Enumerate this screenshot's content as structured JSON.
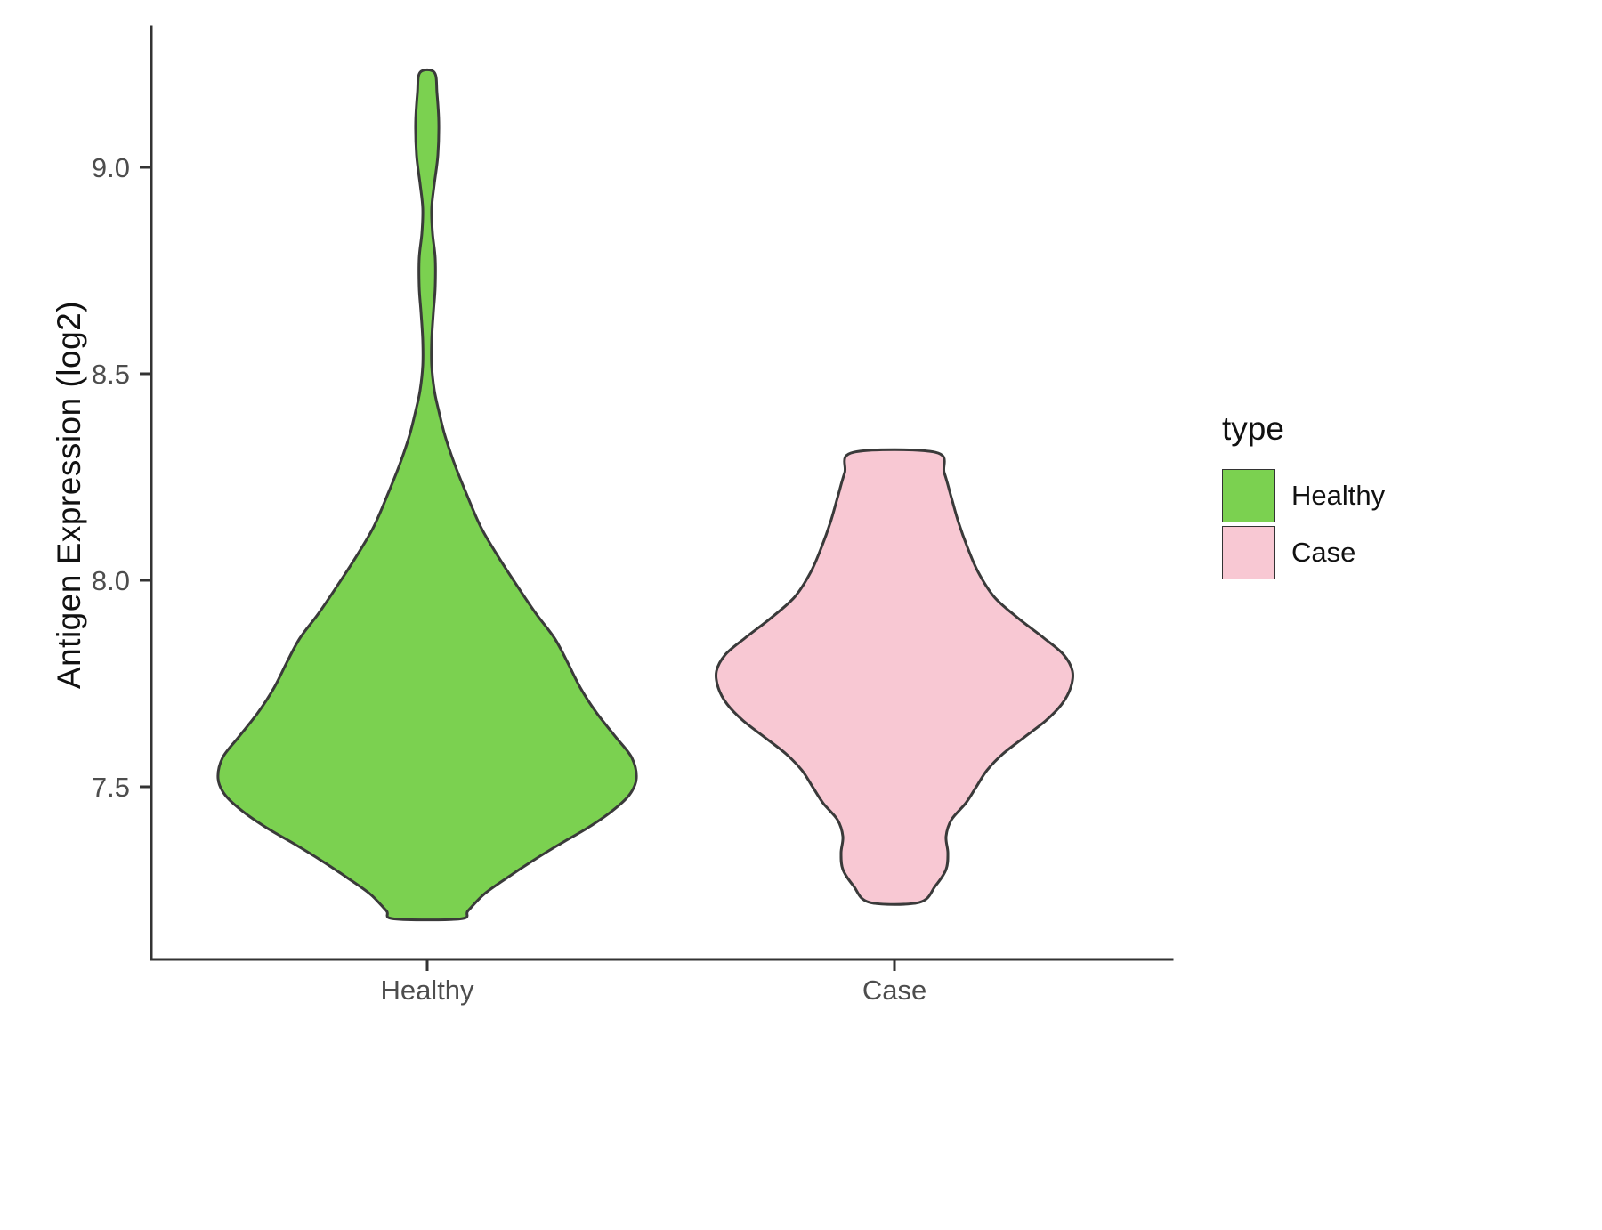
{
  "chart_data": {
    "type": "violin",
    "title": "",
    "xlabel": "",
    "ylabel": "Antigen Expression (log2)",
    "ylim": [
      7.08,
      9.34
    ],
    "yticks": [
      7.5,
      8.0,
      8.5,
      9.0
    ],
    "categories": [
      "Healthy",
      "Case"
    ],
    "grid": false,
    "legend_position": "right",
    "legend": {
      "title": "type",
      "entries": [
        {
          "label": "Healthy",
          "color": "#7bd150"
        },
        {
          "label": "Case",
          "color": "#f8c8d3"
        }
      ]
    },
    "stroke_color": "#3a3a3a",
    "axis_color": "#333333",
    "series": [
      {
        "name": "Healthy",
        "color": "#7bd150",
        "value_range": [
          7.18,
          9.23
        ],
        "peak_density_at": 7.54,
        "profile": [
          [
            9.23,
            8
          ],
          [
            9.18,
            11
          ],
          [
            9.11,
            13
          ],
          [
            9.03,
            12
          ],
          [
            8.96,
            8
          ],
          [
            8.9,
            5
          ],
          [
            8.84,
            6
          ],
          [
            8.78,
            9
          ],
          [
            8.71,
            9
          ],
          [
            8.65,
            7
          ],
          [
            8.58,
            5
          ],
          [
            8.52,
            5
          ],
          [
            8.46,
            8
          ],
          [
            8.41,
            13
          ],
          [
            8.35,
            20
          ],
          [
            8.28,
            31
          ],
          [
            8.21,
            44
          ],
          [
            8.13,
            60
          ],
          [
            8.06,
            79
          ],
          [
            7.99,
            100
          ],
          [
            7.92,
            122
          ],
          [
            7.86,
            143
          ],
          [
            7.8,
            158
          ],
          [
            7.74,
            172
          ],
          [
            7.68,
            190
          ],
          [
            7.62,
            212
          ],
          [
            7.57,
            230
          ],
          [
            7.52,
            235
          ],
          [
            7.48,
            227
          ],
          [
            7.44,
            207
          ],
          [
            7.4,
            180
          ],
          [
            7.36,
            148
          ],
          [
            7.32,
            118
          ],
          [
            7.28,
            90
          ],
          [
            7.24,
            64
          ],
          [
            7.2,
            46
          ],
          [
            7.18,
            37
          ]
        ]
      },
      {
        "name": "Case",
        "color": "#f8c8d3",
        "value_range": [
          7.22,
          8.31
        ],
        "peak_density_at": 7.78,
        "profile": [
          [
            8.31,
            46
          ],
          [
            8.26,
            56
          ],
          [
            8.2,
            64
          ],
          [
            8.14,
            72
          ],
          [
            8.08,
            82
          ],
          [
            8.02,
            94
          ],
          [
            7.96,
            112
          ],
          [
            7.91,
            138
          ],
          [
            7.86,
            168
          ],
          [
            7.82,
            190
          ],
          [
            7.78,
            200
          ],
          [
            7.74,
            198
          ],
          [
            7.7,
            188
          ],
          [
            7.66,
            170
          ],
          [
            7.62,
            146
          ],
          [
            7.58,
            122
          ],
          [
            7.54,
            104
          ],
          [
            7.5,
            92
          ],
          [
            7.46,
            80
          ],
          [
            7.42,
            64
          ],
          [
            7.38,
            58
          ],
          [
            7.34,
            60
          ],
          [
            7.3,
            58
          ],
          [
            7.26,
            46
          ],
          [
            7.22,
            28
          ]
        ]
      }
    ]
  }
}
